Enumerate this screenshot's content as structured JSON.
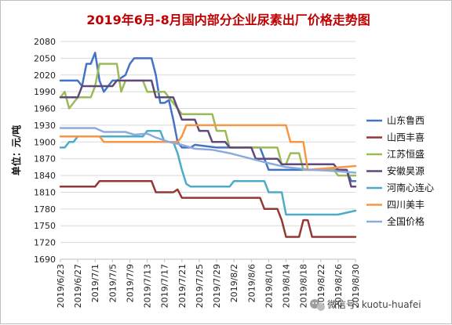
{
  "chart_data": {
    "type": "line",
    "title": "2019年6月-8月国内部分企业尿素出厂价格走势图",
    "ylabel": "单位：元/吨",
    "xlabel": "",
    "ylim": [
      1690,
      2080
    ],
    "yticks": [
      2080,
      2050,
      2020,
      1990,
      1960,
      1930,
      1900,
      1870,
      1840,
      1810,
      1780,
      1750,
      1720,
      1690
    ],
    "x_tick_labels": [
      "2019/6/23",
      "2019/6/27",
      "2019/7/1",
      "2019/7/5",
      "2019/7/9",
      "2019/7/13",
      "2019/7/17",
      "2019/7/21",
      "2019/7/25",
      "2019/7/29",
      "2019/8/2",
      "2019/8/6",
      "2019/8/10",
      "2019/8/14",
      "2019/8/18",
      "2019/8/22",
      "2019/8/26",
      "2019/8/30"
    ],
    "x_range": [
      "2019-06-23",
      "2019-08-30"
    ],
    "legend_position": "right",
    "grid": "horizontal",
    "series": [
      {
        "name": "山东鲁西",
        "color": "#4472c4",
        "points": [
          [
            "2019-06-23",
            2010
          ],
          [
            "2019-06-27",
            2010
          ],
          [
            "2019-06-28",
            2000
          ],
          [
            "2019-06-29",
            2040
          ],
          [
            "2019-06-30",
            2040
          ],
          [
            "2019-07-01",
            2060
          ],
          [
            "2019-07-02",
            2010
          ],
          [
            "2019-07-03",
            1990
          ],
          [
            "2019-07-04",
            2000
          ],
          [
            "2019-07-05",
            2010
          ],
          [
            "2019-07-06",
            2010
          ],
          [
            "2019-07-08",
            2020
          ],
          [
            "2019-07-09",
            2040
          ],
          [
            "2019-07-10",
            2050
          ],
          [
            "2019-07-14",
            2050
          ],
          [
            "2019-07-15",
            2020
          ],
          [
            "2019-07-16",
            1970
          ],
          [
            "2019-07-17",
            1970
          ],
          [
            "2019-07-18",
            1975
          ],
          [
            "2019-07-19",
            1940
          ],
          [
            "2019-07-20",
            1900
          ],
          [
            "2019-07-21",
            1890
          ],
          [
            "2019-07-23",
            1890
          ],
          [
            "2019-07-24",
            1895
          ],
          [
            "2019-07-29",
            1890
          ],
          [
            "2019-08-05",
            1890
          ],
          [
            "2019-08-08",
            1890
          ],
          [
            "2019-08-09",
            1870
          ],
          [
            "2019-08-10",
            1850
          ],
          [
            "2019-08-14",
            1850
          ],
          [
            "2019-08-15",
            1850
          ],
          [
            "2019-08-28",
            1850
          ],
          [
            "2019-08-29",
            1830
          ],
          [
            "2019-08-30",
            1830
          ]
        ]
      },
      {
        "name": "山西丰喜",
        "color": "#953735",
        "points": [
          [
            "2019-06-23",
            1820
          ],
          [
            "2019-07-01",
            1820
          ],
          [
            "2019-07-02",
            1830
          ],
          [
            "2019-07-14",
            1830
          ],
          [
            "2019-07-15",
            1810
          ],
          [
            "2019-07-19",
            1810
          ],
          [
            "2019-07-20",
            1815
          ],
          [
            "2019-07-21",
            1800
          ],
          [
            "2019-08-08",
            1800
          ],
          [
            "2019-08-09",
            1780
          ],
          [
            "2019-08-12",
            1780
          ],
          [
            "2019-08-13",
            1760
          ],
          [
            "2019-08-14",
            1730
          ],
          [
            "2019-08-17",
            1730
          ],
          [
            "2019-08-18",
            1760
          ],
          [
            "2019-08-19",
            1760
          ],
          [
            "2019-08-20",
            1730
          ],
          [
            "2019-08-30",
            1730
          ]
        ]
      },
      {
        "name": "江苏恒盛",
        "color": "#9bbb59",
        "points": [
          [
            "2019-06-23",
            1980
          ],
          [
            "2019-06-24",
            1990
          ],
          [
            "2019-06-25",
            1960
          ],
          [
            "2019-06-26",
            1970
          ],
          [
            "2019-06-27",
            1980
          ],
          [
            "2019-06-30",
            1980
          ],
          [
            "2019-07-01",
            2000
          ],
          [
            "2019-07-02",
            2040
          ],
          [
            "2019-07-06",
            2040
          ],
          [
            "2019-07-07",
            1990
          ],
          [
            "2019-07-08",
            2010
          ],
          [
            "2019-07-12",
            2010
          ],
          [
            "2019-07-13",
            1990
          ],
          [
            "2019-07-17",
            1990
          ],
          [
            "2019-07-18",
            1980
          ],
          [
            "2019-07-20",
            1960
          ],
          [
            "2019-07-21",
            1950
          ],
          [
            "2019-07-28",
            1950
          ],
          [
            "2019-07-29",
            1920
          ],
          [
            "2019-07-31",
            1920
          ],
          [
            "2019-08-01",
            1890
          ],
          [
            "2019-08-12",
            1890
          ],
          [
            "2019-08-13",
            1860
          ],
          [
            "2019-08-14",
            1860
          ],
          [
            "2019-08-15",
            1880
          ],
          [
            "2019-08-17",
            1880
          ],
          [
            "2019-08-18",
            1850
          ],
          [
            "2019-08-25",
            1850
          ],
          [
            "2019-08-26",
            1840
          ],
          [
            "2019-08-30",
            1840
          ]
        ]
      },
      {
        "name": "安徽昊源",
        "color": "#5f497a",
        "points": [
          [
            "2019-06-23",
            1980
          ],
          [
            "2019-06-27",
            1980
          ],
          [
            "2019-06-28",
            2000
          ],
          [
            "2019-07-05",
            2000
          ],
          [
            "2019-07-06",
            2010
          ],
          [
            "2019-07-14",
            2010
          ],
          [
            "2019-07-15",
            1980
          ],
          [
            "2019-07-19",
            1980
          ],
          [
            "2019-07-20",
            1960
          ],
          [
            "2019-07-21",
            1940
          ],
          [
            "2019-07-24",
            1940
          ],
          [
            "2019-07-25",
            1920
          ],
          [
            "2019-07-27",
            1920
          ],
          [
            "2019-07-28",
            1900
          ],
          [
            "2019-07-31",
            1900
          ],
          [
            "2019-08-01",
            1890
          ],
          [
            "2019-08-06",
            1890
          ],
          [
            "2019-08-07",
            1870
          ],
          [
            "2019-08-12",
            1870
          ],
          [
            "2019-08-13",
            1860
          ],
          [
            "2019-08-25",
            1860
          ],
          [
            "2019-08-26",
            1850
          ],
          [
            "2019-08-28",
            1850
          ],
          [
            "2019-08-29",
            1820
          ],
          [
            "2019-08-30",
            1820
          ]
        ]
      },
      {
        "name": "河南心连心",
        "color": "#4bacc6",
        "points": [
          [
            "2019-06-23",
            1890
          ],
          [
            "2019-06-24",
            1890
          ],
          [
            "2019-06-25",
            1900
          ],
          [
            "2019-06-26",
            1900
          ],
          [
            "2019-06-27",
            1910
          ],
          [
            "2019-07-12",
            1910
          ],
          [
            "2019-07-13",
            1920
          ],
          [
            "2019-07-16",
            1920
          ],
          [
            "2019-07-17",
            1900
          ],
          [
            "2019-07-19",
            1900
          ],
          [
            "2019-07-20",
            1880
          ],
          [
            "2019-07-21",
            1850
          ],
          [
            "2019-07-22",
            1825
          ],
          [
            "2019-07-23",
            1820
          ],
          [
            "2019-08-01",
            1820
          ],
          [
            "2019-08-02",
            1830
          ],
          [
            "2019-08-09",
            1830
          ],
          [
            "2019-08-10",
            1810
          ],
          [
            "2019-08-13",
            1810
          ],
          [
            "2019-08-14",
            1770
          ],
          [
            "2019-08-26",
            1770
          ],
          [
            "2019-08-30",
            1777
          ]
        ]
      },
      {
        "name": "四川美丰",
        "color": "#f79646",
        "points": [
          [
            "2019-06-23",
            1910
          ],
          [
            "2019-07-02",
            1910
          ],
          [
            "2019-07-03",
            1900
          ],
          [
            "2019-07-20",
            1900
          ],
          [
            "2019-07-21",
            1910
          ],
          [
            "2019-07-22",
            1930
          ],
          [
            "2019-08-14",
            1930
          ],
          [
            "2019-08-15",
            1900
          ],
          [
            "2019-08-18",
            1900
          ],
          [
            "2019-08-19",
            1850
          ],
          [
            "2019-08-30",
            1857
          ]
        ]
      },
      {
        "name": "全国价格",
        "color": "#8eaadb",
        "points": [
          [
            "2019-06-23",
            1925
          ],
          [
            "2019-07-01",
            1925
          ],
          [
            "2019-07-03",
            1918
          ],
          [
            "2019-07-08",
            1918
          ],
          [
            "2019-07-10",
            1913
          ],
          [
            "2019-07-13",
            1915
          ],
          [
            "2019-07-15",
            1908
          ],
          [
            "2019-07-18",
            1900
          ],
          [
            "2019-07-21",
            1895
          ],
          [
            "2019-07-24",
            1888
          ],
          [
            "2019-07-28",
            1886
          ],
          [
            "2019-08-01",
            1880
          ],
          [
            "2019-08-05",
            1872
          ],
          [
            "2019-08-10",
            1862
          ],
          [
            "2019-08-14",
            1855
          ],
          [
            "2019-08-20",
            1850
          ],
          [
            "2019-08-25",
            1848
          ],
          [
            "2019-08-30",
            1845
          ]
        ]
      }
    ]
  },
  "watermark": {
    "icon": "wechat-icon",
    "text": "微信号: kuotu-huafei"
  }
}
